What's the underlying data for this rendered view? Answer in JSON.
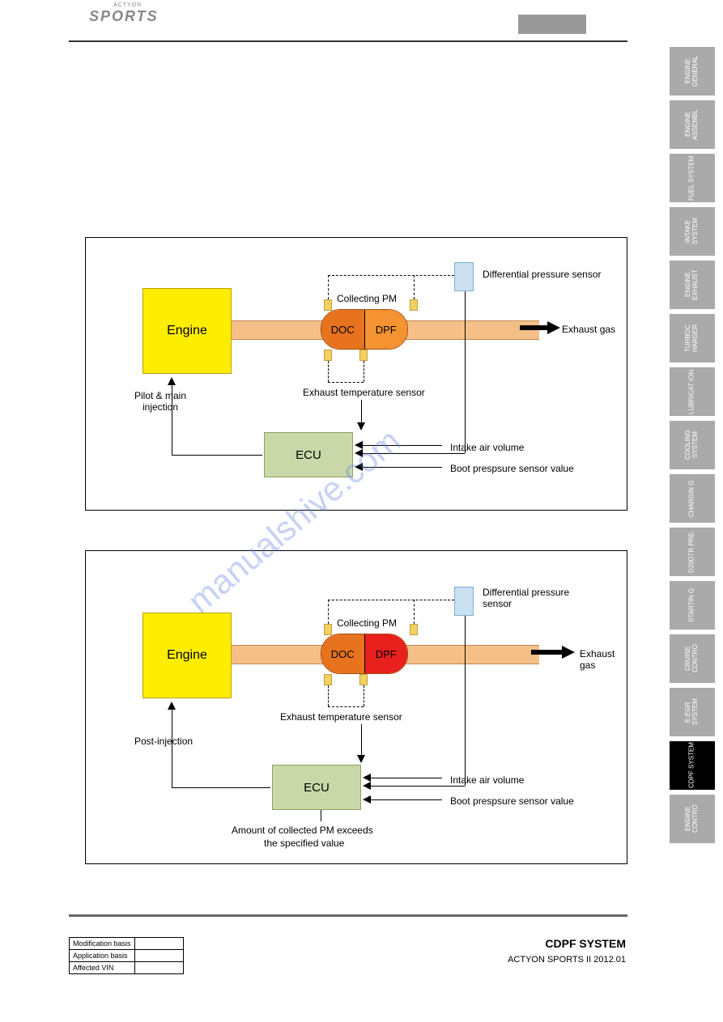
{
  "header": {
    "logo": "SPORTS",
    "logo_sub": "ACTYON"
  },
  "tabs": [
    {
      "label": "ENGINE GENERAL",
      "active": false
    },
    {
      "label": "ENGINE ASSEMBL",
      "active": false
    },
    {
      "label": "FUEL SYSTEM",
      "active": false
    },
    {
      "label": "INTAKE SYSTEM",
      "active": false
    },
    {
      "label": "ENGINE EXHAUST",
      "active": false
    },
    {
      "label": "TURBOC HARGER",
      "active": false
    },
    {
      "label": "LUBRICAT ION",
      "active": false
    },
    {
      "label": "COOLING SYSTEM",
      "active": false
    },
    {
      "label": "CHARGIN G",
      "active": false
    },
    {
      "label": "D20DTR PRE-",
      "active": false
    },
    {
      "label": "STARTIN G",
      "active": false
    },
    {
      "label": "CRUISE CONTRO",
      "active": false
    },
    {
      "label": "E-EGR SYSTEM",
      "active": false
    },
    {
      "label": "CDPF SYSTEM",
      "active": true
    },
    {
      "label": "ENGINE CONTRO",
      "active": false
    }
  ],
  "diagram1": {
    "engine": "Engine",
    "doc": "DOC",
    "dpf": "DPF",
    "dpf_color": "#f59231",
    "ecu": "ECU",
    "collecting": "Collecting PM",
    "dps": "Differential pressure sensor",
    "ets": "Exhaust temperature sensor",
    "exhaust": "Exhaust gas",
    "injection": "Pilot & main\ninjection",
    "intake": "Intake air volume",
    "boost": "Boot prespsure sensor value"
  },
  "diagram2": {
    "engine": "Engine",
    "doc": "DOC",
    "dpf": "DPF",
    "dpf_color": "#e8201e",
    "ecu": "ECU",
    "collecting": "Collecting PM",
    "dps": "Differential pressure\nsensor",
    "ets": "Exhaust temperature sensor",
    "exhaust": "Exhaust gas",
    "injection": "Post-injection",
    "intake": "Intake air volume",
    "boost": "Boot prespsure sensor value",
    "pm_note1": "Amount of collected PM exceeds",
    "pm_note2": "the specified value"
  },
  "watermark": "manualshive.com",
  "footer": {
    "rows": [
      "Modification basis",
      "Application basis",
      "Affected VIN"
    ],
    "title": "CDPF SYSTEM",
    "sub": "ACTYON SPORTS II 2012.01"
  }
}
